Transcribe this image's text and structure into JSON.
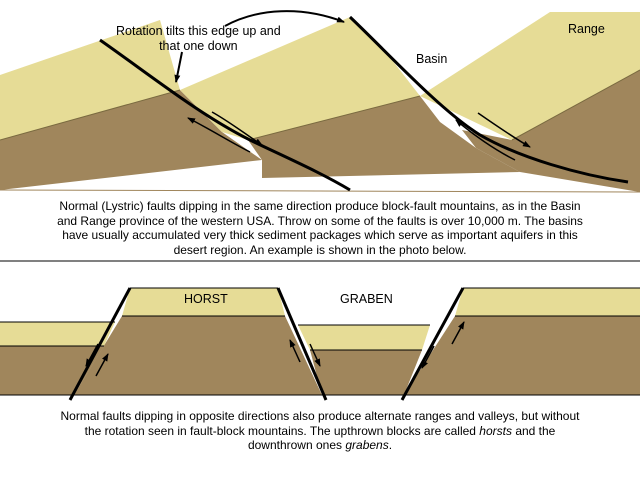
{
  "top_diagram": {
    "labels": {
      "rotation_line1": "Rotation tilts this edge up and",
      "rotation_line2": "that one down",
      "basin": "Basin",
      "range": "Range"
    },
    "caption": [
      "Normal (Lystric) faults dipping in the same direction produce block-fault mountains, as in the Basin",
      "and Range province of the western USA.  Throw on some of the faults is over 10,000 m.  The basins",
      "have usually accumulated very thick sediment packages which serve as important aquifers in this",
      "desert region.  An example is shown in the photo below."
    ]
  },
  "bottom_diagram": {
    "labels": {
      "horst": "HORST",
      "graben": "GRABEN"
    },
    "caption": {
      "line1": "Normal faults dipping in opposite directions also produce alternate ranges and valleys, but without",
      "line2": "the rotation seen in fault-block mountains.  The upthrown blocks are called",
      "horsts": "horsts",
      "and_the": "and the",
      "line3_prefix": "downthrown ones",
      "grabens": "grabens",
      "period": "."
    }
  },
  "colors": {
    "sediment_tan": "#e6dc96",
    "rock_brown": "#a0865c",
    "outline": "#000000"
  }
}
